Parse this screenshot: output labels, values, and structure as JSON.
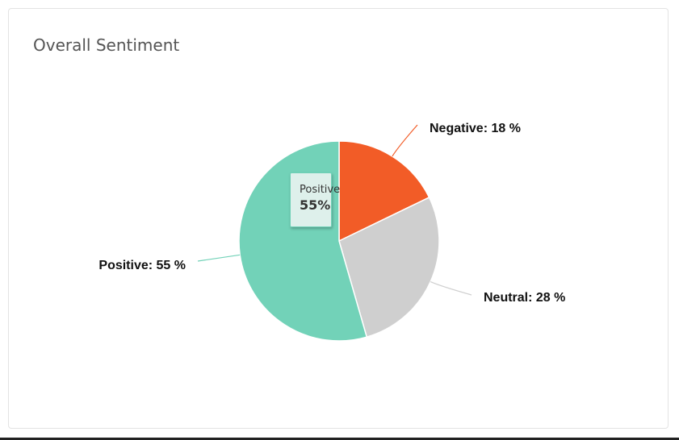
{
  "card": {
    "title": "Overall Sentiment"
  },
  "chart_data": {
    "type": "pie",
    "title": "Overall Sentiment",
    "slices": [
      {
        "name": "Negative",
        "value": 18,
        "label": "Negative: 18 %",
        "color": "#f25c27"
      },
      {
        "name": "Neutral",
        "value": 28,
        "label": "Neutral: 28 %",
        "color": "#cfcfcf"
      },
      {
        "name": "Positive",
        "value": 55,
        "label": "Positive: 55 %",
        "color": "#72d2b8"
      }
    ],
    "start_angle_deg": 0,
    "direction": "clockwise",
    "tooltip": {
      "name": "Positive",
      "value": "55%"
    }
  }
}
